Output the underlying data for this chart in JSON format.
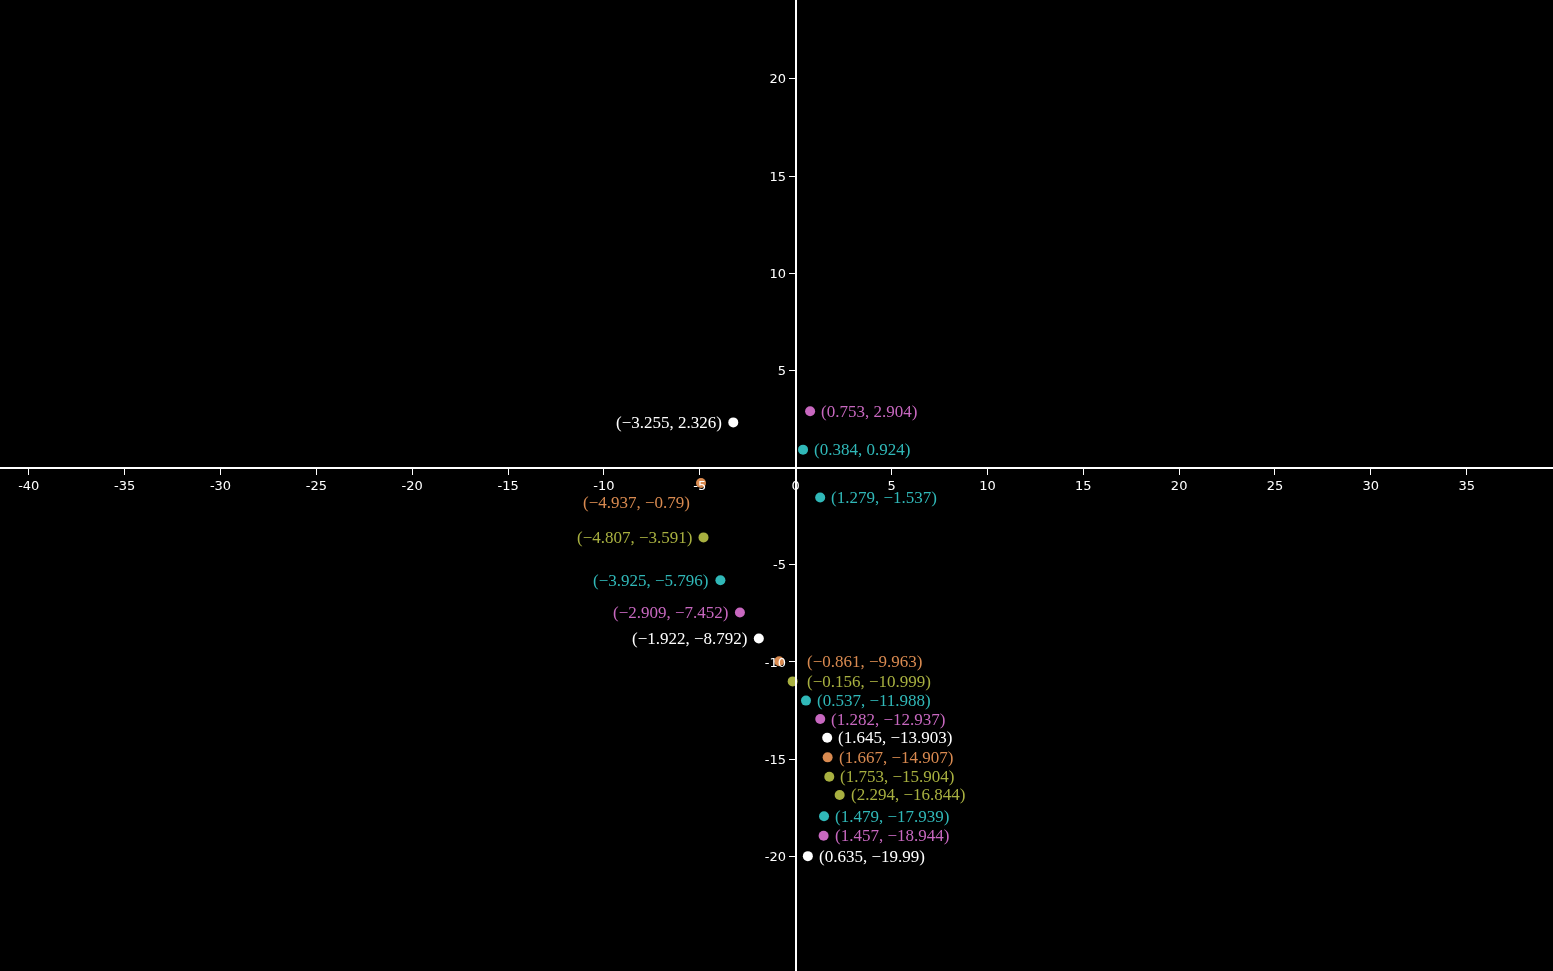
{
  "chart_data": {
    "type": "scatter",
    "marker": "circle",
    "grid": false,
    "x": [
      -3.255,
      0.753,
      0.384,
      -4.937,
      1.279,
      -4.807,
      -3.925,
      -2.909,
      -1.922,
      -0.861,
      -0.156,
      0.537,
      1.282,
      1.645,
      1.667,
      1.753,
      2.294,
      1.479,
      1.457,
      0.635
    ],
    "values": [
      2.326,
      2.904,
      0.924,
      -0.79,
      -1.537,
      -3.591,
      -5.796,
      -7.452,
      -8.792,
      -9.963,
      -10.999,
      -11.988,
      -12.937,
      -13.903,
      -14.907,
      -15.904,
      -16.844,
      -17.939,
      -18.944,
      -19.99
    ],
    "colors": [
      "#ffffff",
      "#c868c0",
      "#30b8b8",
      "#d98a50",
      "#30b8b8",
      "#a8b040",
      "#30b8b8",
      "#c868c0",
      "#ffffff",
      "#d98a50",
      "#a8b040",
      "#30b8b8",
      "#c868c0",
      "#ffffff",
      "#d98a50",
      "#a8b040",
      "#a8b040",
      "#30b8b8",
      "#c868c0",
      "#ffffff"
    ],
    "annotations": [
      {
        "text": "(−3.255, 2.326)",
        "x": -3.255,
        "y": 2.326
      },
      {
        "text": "(0.753, 2.904)",
        "x": 0.753,
        "y": 2.904
      },
      {
        "text": "(0.384, 0.924)",
        "x": 0.384,
        "y": 0.924
      },
      {
        "text": "(−4.937, −0.79)",
        "x": -4.937,
        "y": -0.79
      },
      {
        "text": "(1.279, −1.537)",
        "x": 1.279,
        "y": -1.537
      },
      {
        "text": "(−4.807, −3.591)",
        "x": -4.807,
        "y": -3.591
      },
      {
        "text": "(−3.925, −5.796)",
        "x": -3.925,
        "y": -5.796
      },
      {
        "text": "(−2.909, −7.452)",
        "x": -2.909,
        "y": -7.452
      },
      {
        "text": "(−1.922, −8.792)",
        "x": -1.922,
        "y": -8.792
      },
      {
        "text": "(−0.861, −9.963)",
        "x": -0.861,
        "y": -9.963
      },
      {
        "text": "(−0.156, −10.999)",
        "x": -0.156,
        "y": -10.999
      },
      {
        "text": "(0.537, −11.988)",
        "x": 0.537,
        "y": -11.988
      },
      {
        "text": "(1.282, −12.937)",
        "x": 1.282,
        "y": -12.937
      },
      {
        "text": "(1.645, −13.903)",
        "x": 1.645,
        "y": -13.903
      },
      {
        "text": "(1.667, −14.907)",
        "x": 1.667,
        "y": -14.907
      },
      {
        "text": "(1.753, −15.904)",
        "x": 1.753,
        "y": -15.904
      },
      {
        "text": "(2.294, −16.844)",
        "x": 2.294,
        "y": -16.844
      },
      {
        "text": "(1.479, −17.939)",
        "x": 1.479,
        "y": -17.939
      },
      {
        "text": "(1.457, −18.944)",
        "x": 1.457,
        "y": -18.944
      },
      {
        "text": "(0.635, −19.99)",
        "x": 0.635,
        "y": -19.99
      }
    ],
    "xlim": [
      -41.5,
      39.5
    ],
    "ylim": [
      -25.9,
      24.06
    ],
    "xticks": [
      -40,
      -35,
      -30,
      -25,
      -20,
      -15,
      -10,
      -5,
      0,
      5,
      10,
      15,
      20,
      25,
      30,
      35
    ],
    "yticks": [
      -20,
      -15,
      -10,
      -5,
      5,
      10,
      15,
      20
    ]
  }
}
